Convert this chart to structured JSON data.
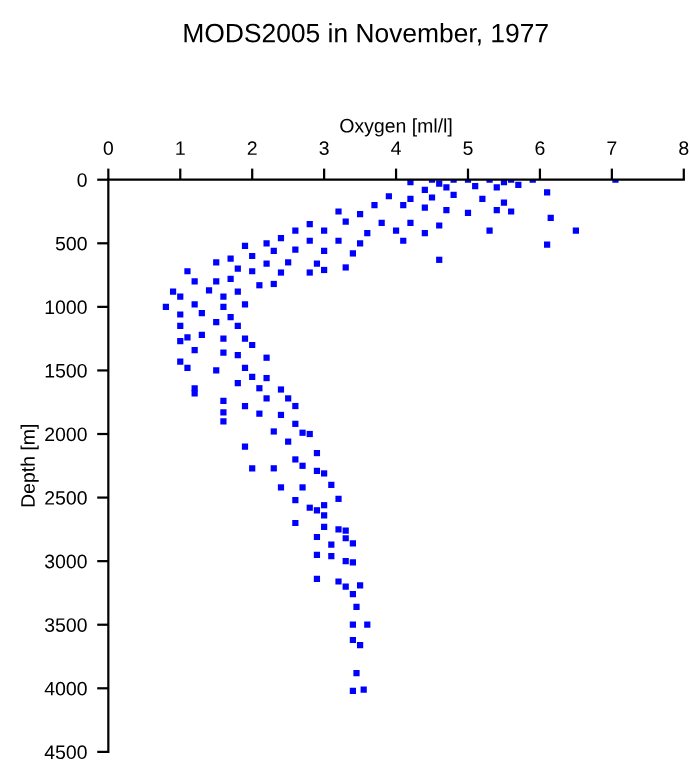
{
  "chart_data": {
    "type": "scatter",
    "title": "MODS2005 in November, 1977",
    "xlabel": "Oxygen [ml/l]",
    "ylabel": "Depth [m]",
    "xlim": [
      0,
      8
    ],
    "xticks": [
      0,
      1,
      2,
      3,
      4,
      5,
      6,
      7,
      8
    ],
    "ylim": [
      4500,
      0
    ],
    "yticks": [
      0,
      500,
      1000,
      1500,
      2000,
      2500,
      3000,
      3500,
      4000,
      4500
    ],
    "marker": "square",
    "grid": false,
    "legend": false,
    "series": [
      {
        "color": "#0000ff",
        "x": [
          4.5,
          4.8,
          5.0,
          5.3,
          5.6,
          5.9,
          7.05,
          4.2,
          4.6,
          5.5,
          4.4,
          4.7,
          5.1,
          5.4,
          5.7,
          6.1,
          3.9,
          4.2,
          4.5,
          4.8,
          5.2,
          5.5,
          3.7,
          4.1,
          4.4,
          4.7,
          5.0,
          5.4,
          5.6,
          6.15,
          6.5,
          6.1,
          4.6,
          3.2,
          3.5,
          3.3,
          3.8,
          4.2,
          4.6,
          5.3,
          2.8,
          3.0,
          2.6,
          3.6,
          4.0,
          4.4,
          2.4,
          2.8,
          3.2,
          3.5,
          4.1,
          2.2,
          2.6,
          3.0,
          3.4,
          1.9,
          2.3,
          2.0,
          2.5,
          2.9,
          3.3,
          1.7,
          2.2,
          2.8,
          3.0,
          1.5,
          1.8,
          2.0,
          2.4,
          1.5,
          1.1,
          1.2,
          1.7,
          2.1,
          2.3,
          0.9,
          1.4,
          1.8,
          1.0,
          1.6,
          0.8,
          1.2,
          1.6,
          1.9,
          1.0,
          1.3,
          1.7,
          1.5,
          1.0,
          1.8,
          1.1,
          1.3,
          1.6,
          1.9,
          1.0,
          2.0,
          1.2,
          1.6,
          1.8,
          1.0,
          2.2,
          1.5,
          1.9,
          1.1,
          2.0,
          2.2,
          1.8,
          1.2,
          2.1,
          2.4,
          1.2,
          1.6,
          2.2,
          2.5,
          1.9,
          1.6,
          2.1,
          2.4,
          2.6,
          2.6,
          1.6,
          2.3,
          2.7,
          2.5,
          2.8,
          1.9,
          2.9,
          2.6,
          2.7,
          2.0,
          2.3,
          2.9,
          3.0,
          2.4,
          2.7,
          3.1,
          2.6,
          3.0,
          3.2,
          2.8,
          2.9,
          3.0,
          2.6,
          3.0,
          3.2,
          3.3,
          2.9,
          3.3,
          3.1,
          3.4,
          2.9,
          3.1,
          3.3,
          3.4,
          2.9,
          3.2,
          3.3,
          3.5,
          3.4,
          3.45,
          3.4,
          3.6,
          3.4,
          3.5,
          3.45,
          3.4,
          3.55
        ],
        "values": [
          0,
          0,
          0,
          0,
          0,
          0,
          0,
          20,
          30,
          20,
          80,
          60,
          50,
          60,
          40,
          100,
          130,
          150,
          140,
          120,
          150,
          180,
          200,
          200,
          220,
          240,
          260,
          240,
          250,
          300,
          400,
          510,
          630,
          250,
          270,
          330,
          340,
          340,
          360,
          400,
          350,
          400,
          400,
          420,
          400,
          420,
          460,
          480,
          480,
          500,
          480,
          500,
          550,
          560,
          580,
          520,
          560,
          600,
          650,
          660,
          690,
          620,
          660,
          730,
          710,
          650,
          700,
          720,
          730,
          800,
          720,
          800,
          780,
          830,
          820,
          880,
          870,
          880,
          920,
          920,
          1000,
          980,
          1000,
          980,
          1060,
          1050,
          1080,
          1120,
          1150,
          1150,
          1240,
          1220,
          1250,
          1250,
          1270,
          1300,
          1340,
          1360,
          1380,
          1430,
          1400,
          1500,
          1480,
          1480,
          1550,
          1560,
          1600,
          1640,
          1640,
          1650,
          1680,
          1740,
          1720,
          1720,
          1780,
          1830,
          1840,
          1850,
          1780,
          1920,
          1900,
          1980,
          1990,
          2060,
          2000,
          2100,
          2150,
          2200,
          2250,
          2270,
          2270,
          2290,
          2310,
          2420,
          2420,
          2400,
          2520,
          2560,
          2510,
          2580,
          2600,
          2640,
          2700,
          2730,
          2750,
          2760,
          2810,
          2820,
          2870,
          2860,
          2950,
          2960,
          3000,
          3010,
          3140,
          3160,
          3200,
          3190,
          3260,
          3360,
          3500,
          3500,
          3620,
          3660,
          3880,
          4020,
          4010
        ]
      }
    ]
  }
}
